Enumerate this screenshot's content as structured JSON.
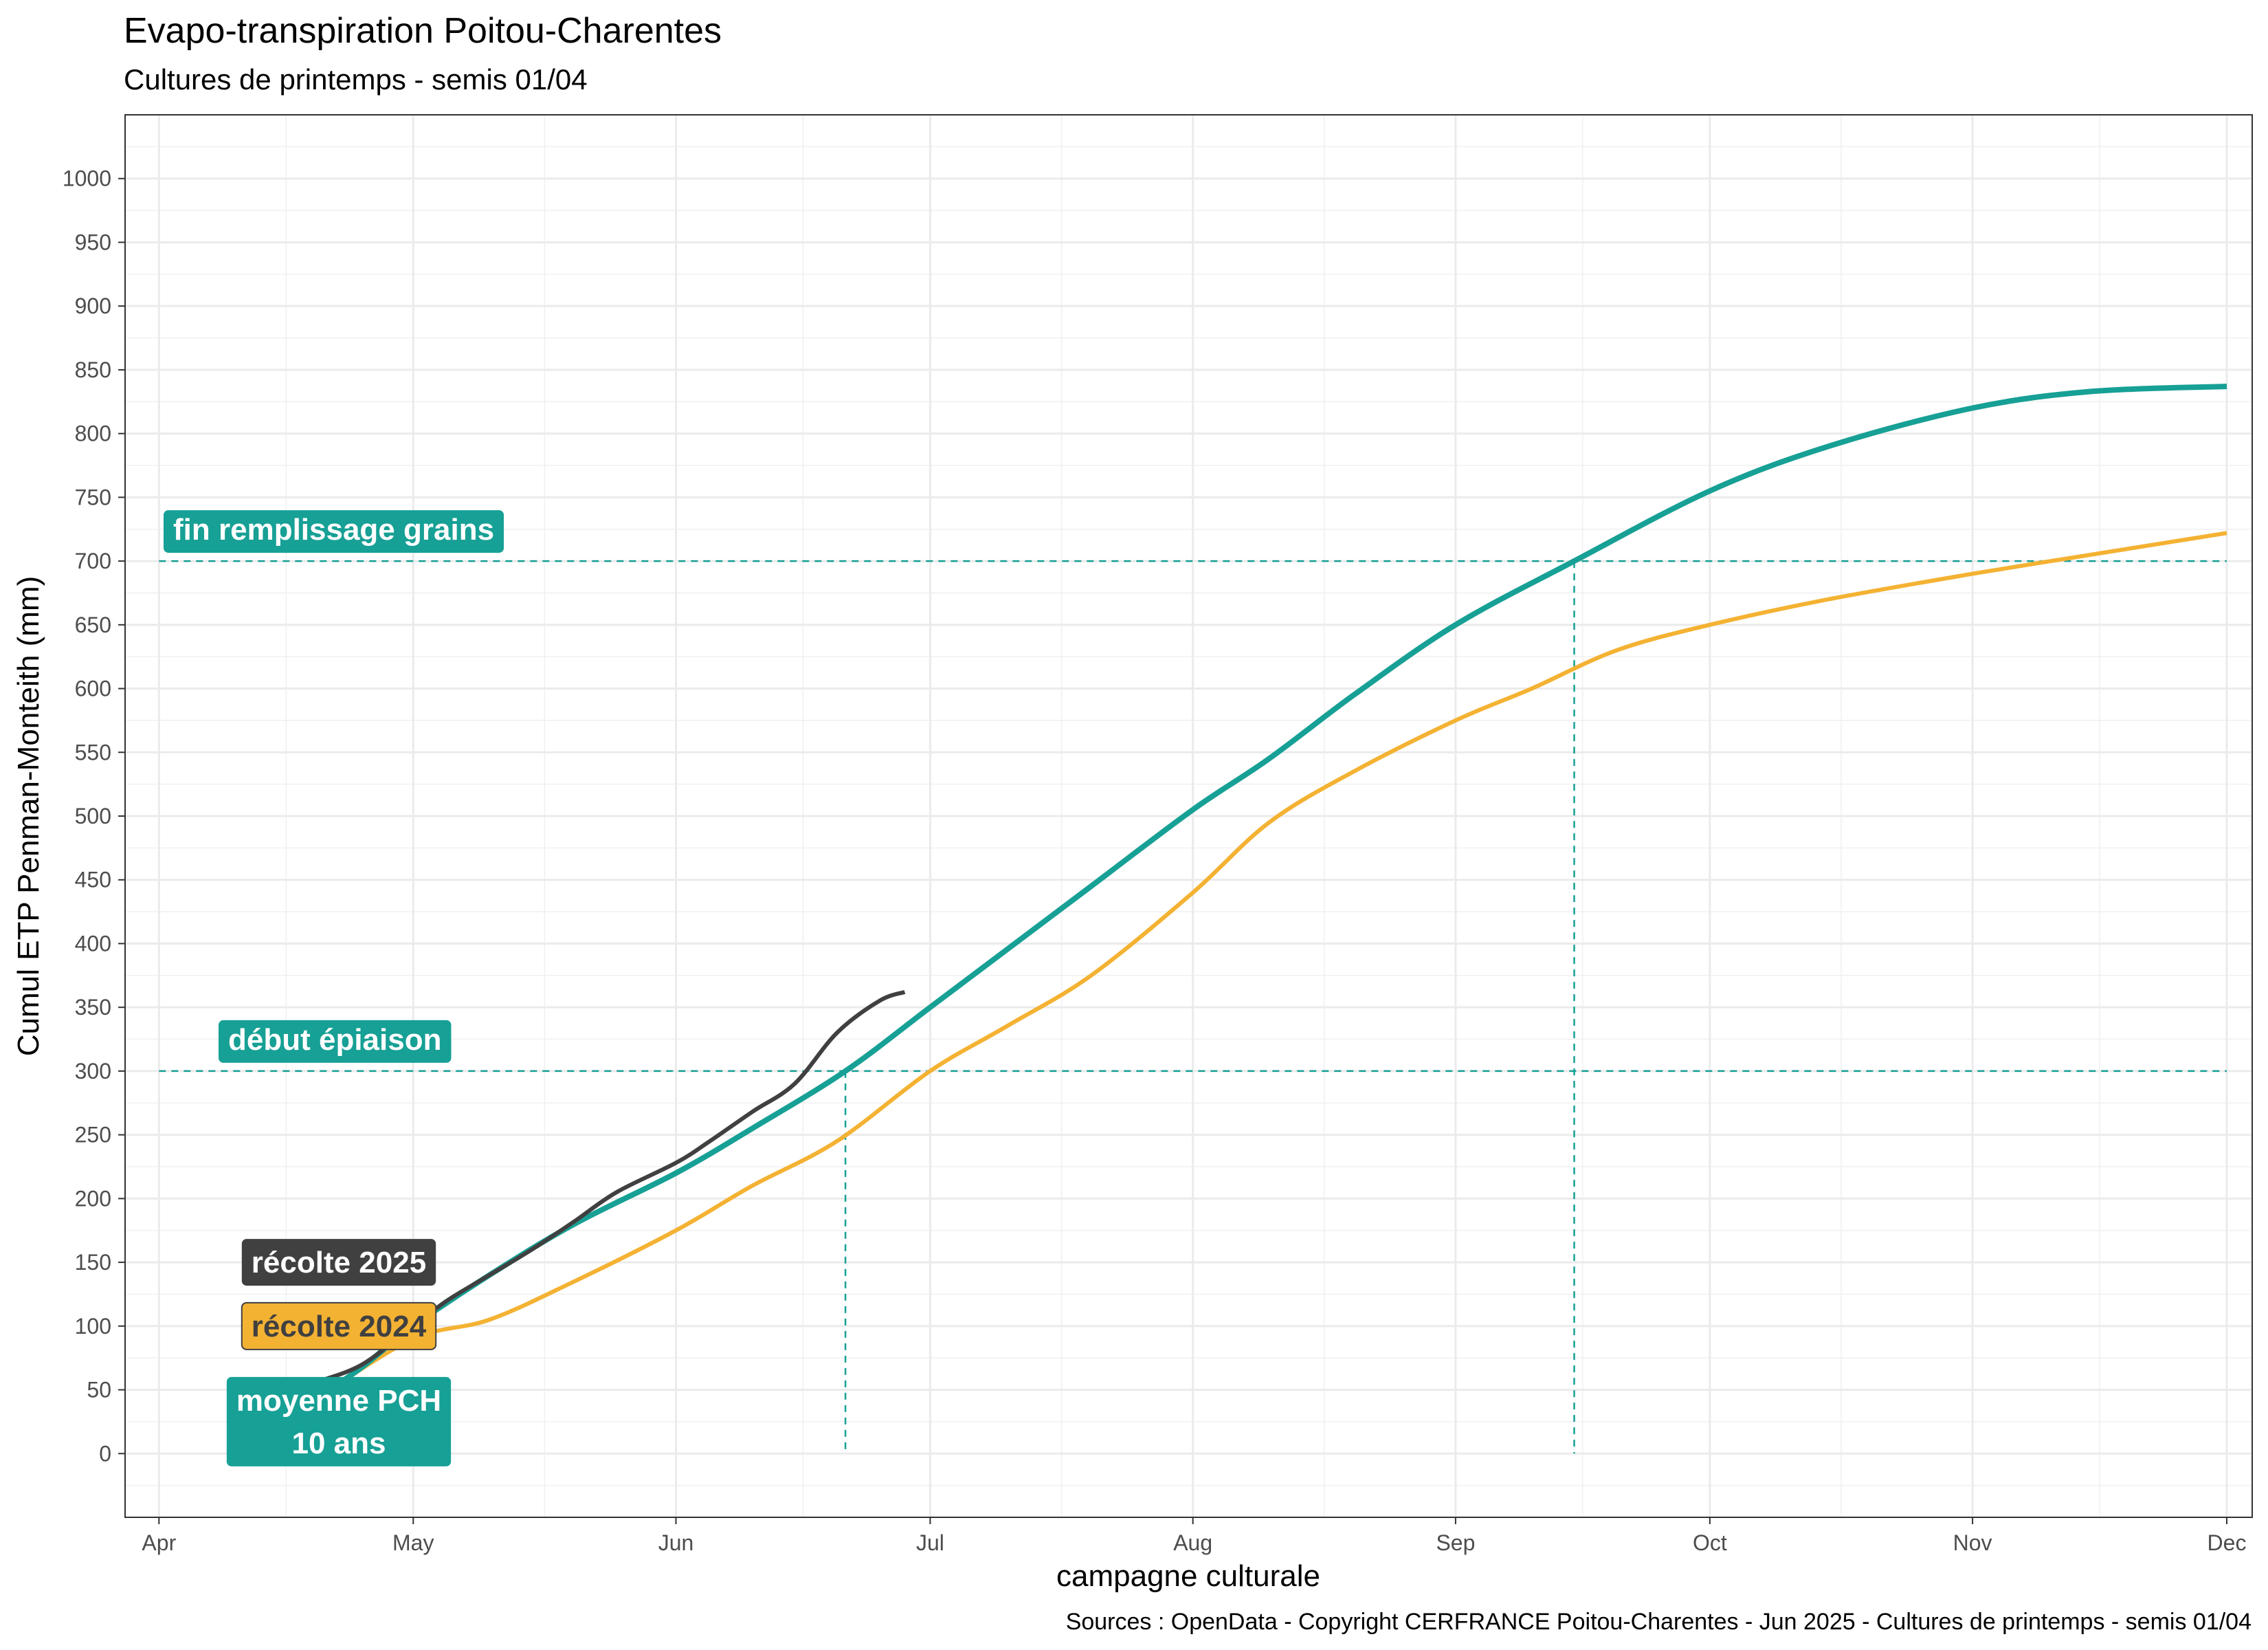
{
  "chart_data": {
    "type": "line",
    "title": "Evapo-transpiration Poitou-Charentes",
    "subtitle": "Cultures de printemps - semis 01/04",
    "xlabel": "campagne culturale",
    "ylabel": "Cumul ETP Penman-Monteith (mm)",
    "caption": "Sources : OpenData - Copyright CERFRANCE Poitou-Charentes - Jun 2025 - Cultures de printemps - semis 01/04",
    "xlim": [
      "2025-03-28",
      "2025-12-04"
    ],
    "ylim": [
      -50,
      1050
    ],
    "x_ticks": [
      {
        "date": "2025-04-01",
        "label": "Apr"
      },
      {
        "date": "2025-05-01",
        "label": "May"
      },
      {
        "date": "2025-06-01",
        "label": "Jun"
      },
      {
        "date": "2025-07-01",
        "label": "Jul"
      },
      {
        "date": "2025-08-01",
        "label": "Aug"
      },
      {
        "date": "2025-09-01",
        "label": "Sep"
      },
      {
        "date": "2025-10-01",
        "label": "Oct"
      },
      {
        "date": "2025-11-01",
        "label": "Nov"
      },
      {
        "date": "2025-12-01",
        "label": "Dec"
      }
    ],
    "y_ticks": [
      0,
      50,
      100,
      150,
      200,
      250,
      300,
      350,
      400,
      450,
      500,
      550,
      600,
      650,
      700,
      750,
      800,
      850,
      900,
      950,
      1000
    ],
    "grid": true,
    "colors": {
      "moyenne": "#17a095",
      "r2024": "#f4b233",
      "r2025": "#404040",
      "thresholds": "#17a095"
    },
    "series": [
      {
        "id": "moyenne",
        "name": "moyenne PCH 10 ans",
        "x": [
          "2025-04-20",
          "2025-04-25",
          "2025-05-01",
          "2025-05-10",
          "2025-05-20",
          "2025-06-01",
          "2025-06-10",
          "2025-06-21",
          "2025-07-01",
          "2025-07-10",
          "2025-07-20",
          "2025-08-01",
          "2025-08-10",
          "2025-08-20",
          "2025-09-01",
          "2025-09-15",
          "2025-10-01",
          "2025-10-15",
          "2025-11-01",
          "2025-11-15",
          "2025-12-01"
        ],
        "y": [
          45,
          68,
          100,
          140,
          180,
          220,
          255,
          300,
          350,
          395,
          445,
          505,
          545,
          595,
          650,
          700,
          755,
          790,
          820,
          833,
          837
        ]
      },
      {
        "id": "r2024",
        "name": "récolte 2024",
        "x": [
          "2025-04-20",
          "2025-05-01",
          "2025-05-10",
          "2025-05-20",
          "2025-06-01",
          "2025-06-10",
          "2025-06-20",
          "2025-07-01",
          "2025-07-10",
          "2025-07-20",
          "2025-08-01",
          "2025-08-10",
          "2025-08-20",
          "2025-09-01",
          "2025-09-10",
          "2025-09-20",
          "2025-10-01",
          "2025-10-15",
          "2025-11-01",
          "2025-11-15",
          "2025-12-01"
        ],
        "y": [
          45,
          90,
          105,
          135,
          175,
          210,
          245,
          300,
          335,
          375,
          440,
          495,
          535,
          575,
          600,
          630,
          650,
          670,
          690,
          705,
          722
        ]
      },
      {
        "id": "r2025",
        "name": "récolte 2025",
        "x": [
          "2025-04-20",
          "2025-04-25",
          "2025-05-01",
          "2025-05-05",
          "2025-05-10",
          "2025-05-15",
          "2025-05-20",
          "2025-05-25",
          "2025-06-01",
          "2025-06-05",
          "2025-06-10",
          "2025-06-15",
          "2025-06-20",
          "2025-06-25",
          "2025-06-28"
        ],
        "y": [
          57,
          70,
          100,
          120,
          140,
          160,
          182,
          205,
          228,
          245,
          268,
          290,
          330,
          355,
          362
        ]
      }
    ],
    "thresholds": [
      {
        "y": 300,
        "label": "début épiaison",
        "x_cross": "2025-06-21"
      },
      {
        "y": 700,
        "label": "fin remplissage grains",
        "x_cross": "2025-09-15"
      }
    ],
    "legend_labels": [
      {
        "id": "r2025",
        "lines": [
          "récolte 2025"
        ]
      },
      {
        "id": "r2024",
        "lines": [
          "récolte 2024"
        ]
      },
      {
        "id": "moyenne",
        "lines": [
          "moyenne PCH",
          "10 ans"
        ]
      }
    ]
  }
}
